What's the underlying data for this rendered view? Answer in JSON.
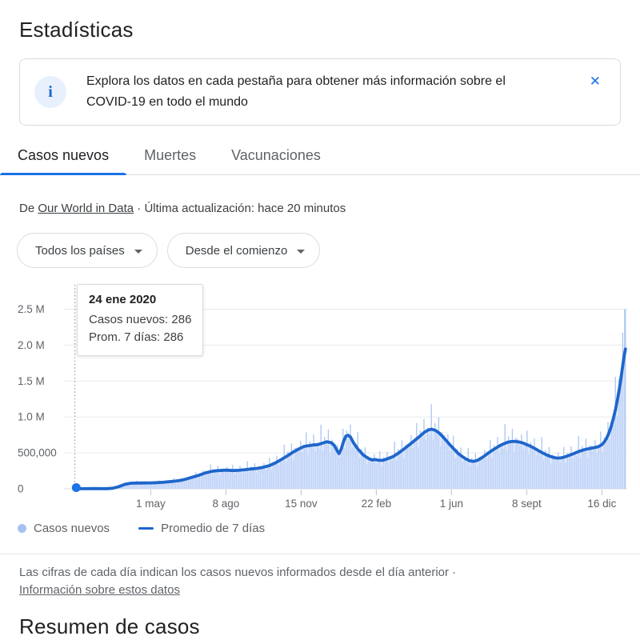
{
  "page": {
    "title": "Estadísticas",
    "bottom_heading": "Resumen de casos"
  },
  "banner": {
    "line1": "Explora los datos en cada pestaña para obtener más información sobre el",
    "line2": "COVID-19 en todo el mundo",
    "info_icon": "i",
    "close_icon": "✕"
  },
  "tabs": [
    {
      "label": "Casos nuevos",
      "active": true
    },
    {
      "label": "Muertes",
      "active": false
    },
    {
      "label": "Vacunaciones",
      "active": false
    }
  ],
  "source_line": {
    "prefix": "De ",
    "link": "Our World in Data",
    "suffix": " · Última actualización: hace 20 minutos"
  },
  "filters": [
    {
      "label": "Todos los países"
    },
    {
      "label": "Desde el comienzo"
    }
  ],
  "tooltip": {
    "title": "24 ene 2020",
    "line1": "Casos nuevos: 286",
    "line2": "Prom. 7 días: 286"
  },
  "legend": [
    {
      "label": "Casos nuevos",
      "swatch": "dot",
      "color": "#a6c2f2"
    },
    {
      "label": "Promedio de 7 días",
      "swatch": "line",
      "color": "#1e66cb"
    }
  ],
  "footnote": {
    "line1": "Las cifras de cada día indican los casos nuevos informados desde el día anterior  ·",
    "link": "Información sobre estos datos"
  },
  "colors": {
    "accent_blue": "#1a73e8",
    "avg_line": "#1e66cb",
    "daily_bars": "#a9c6f5",
    "area_fill": "#c8d9f8",
    "grid": "#e8eaed",
    "baseline": "#dadce0",
    "axis_text": "#5f6368",
    "cursor_dotted": "#8a8f94"
  },
  "chart_data": {
    "type": "area",
    "title": "Casos nuevos de COVID-19",
    "x_start_date": "24 ene 2020",
    "x_range_days": [
      0,
      723
    ],
    "ylim": [
      0,
      2500000
    ],
    "grid": true,
    "legend_position": "bottom",
    "y_ticks": [
      {
        "value": 0,
        "label": "0"
      },
      {
        "value": 500000,
        "label": "500,000"
      },
      {
        "value": 1000000,
        "label": "1.0 M"
      },
      {
        "value": 1500000,
        "label": "1.5 M"
      },
      {
        "value": 2000000,
        "label": "2.0 M"
      },
      {
        "value": 2500000,
        "label": "2.5 M"
      }
    ],
    "x_ticks": [
      {
        "label": "1 may",
        "day": 98
      },
      {
        "label": "8 ago",
        "day": 197
      },
      {
        "label": "15 nov",
        "day": 296
      },
      {
        "label": "22 feb",
        "day": 395
      },
      {
        "label": "1 jun",
        "day": 494
      },
      {
        "label": "8 sept",
        "day": 593
      },
      {
        "label": "16 dic",
        "day": 692
      }
    ],
    "highlighted_point": {
      "day": 0,
      "date": "24 ene 2020",
      "new_cases": 286,
      "avg7": 286
    },
    "series": [
      {
        "name": "Casos nuevos",
        "render": "bar",
        "color": "#a9c6f5"
      },
      {
        "name": "Promedio de 7 días",
        "render": "line",
        "color": "#1e66cb"
      }
    ],
    "avg7_points_day_thousands": [
      [
        0,
        0.3
      ],
      [
        8,
        1
      ],
      [
        16,
        2.5
      ],
      [
        24,
        3
      ],
      [
        32,
        2
      ],
      [
        40,
        2.5
      ],
      [
        48,
        8
      ],
      [
        56,
        30
      ],
      [
        64,
        62
      ],
      [
        72,
        78
      ],
      [
        80,
        80
      ],
      [
        90,
        81
      ],
      [
        98,
        82
      ],
      [
        106,
        86
      ],
      [
        114,
        90
      ],
      [
        122,
        98
      ],
      [
        130,
        107
      ],
      [
        138,
        118
      ],
      [
        146,
        140
      ],
      [
        154,
        165
      ],
      [
        162,
        190
      ],
      [
        170,
        222
      ],
      [
        178,
        242
      ],
      [
        186,
        253
      ],
      [
        197,
        260
      ],
      [
        206,
        254
      ],
      [
        214,
        257
      ],
      [
        222,
        266
      ],
      [
        230,
        276
      ],
      [
        238,
        284
      ],
      [
        246,
        300
      ],
      [
        254,
        322
      ],
      [
        262,
        360
      ],
      [
        270,
        408
      ],
      [
        278,
        460
      ],
      [
        286,
        515
      ],
      [
        294,
        560
      ],
      [
        300,
        590
      ],
      [
        306,
        600
      ],
      [
        312,
        610
      ],
      [
        318,
        615
      ],
      [
        324,
        635
      ],
      [
        330,
        655
      ],
      [
        336,
        640
      ],
      [
        340,
        600
      ],
      [
        344,
        520
      ],
      [
        346,
        490
      ],
      [
        349,
        560
      ],
      [
        352,
        660
      ],
      [
        355,
        735
      ],
      [
        358,
        745
      ],
      [
        361,
        720
      ],
      [
        365,
        640
      ],
      [
        371,
        550
      ],
      [
        378,
        470
      ],
      [
        385,
        420
      ],
      [
        390,
        400
      ],
      [
        392,
        408
      ],
      [
        399,
        396
      ],
      [
        404,
        398
      ],
      [
        410,
        420
      ],
      [
        417,
        448
      ],
      [
        424,
        495
      ],
      [
        431,
        550
      ],
      [
        438,
        608
      ],
      [
        445,
        668
      ],
      [
        452,
        728
      ],
      [
        458,
        785
      ],
      [
        464,
        822
      ],
      [
        468,
        830
      ],
      [
        473,
        812
      ],
      [
        478,
        775
      ],
      [
        483,
        720
      ],
      [
        488,
        660
      ],
      [
        493,
        600
      ],
      [
        498,
        545
      ],
      [
        503,
        490
      ],
      [
        508,
        450
      ],
      [
        513,
        415
      ],
      [
        518,
        390
      ],
      [
        523,
        382
      ],
      [
        528,
        395
      ],
      [
        533,
        425
      ],
      [
        538,
        462
      ],
      [
        543,
        502
      ],
      [
        548,
        538
      ],
      [
        553,
        570
      ],
      [
        558,
        602
      ],
      [
        563,
        628
      ],
      [
        568,
        648
      ],
      [
        573,
        658
      ],
      [
        578,
        660
      ],
      [
        583,
        652
      ],
      [
        588,
        638
      ],
      [
        593,
        615
      ],
      [
        598,
        592
      ],
      [
        603,
        565
      ],
      [
        608,
        535
      ],
      [
        613,
        505
      ],
      [
        618,
        478
      ],
      [
        623,
        455
      ],
      [
        628,
        438
      ],
      [
        633,
        428
      ],
      [
        638,
        430
      ],
      [
        643,
        443
      ],
      [
        648,
        462
      ],
      [
        653,
        482
      ],
      [
        658,
        505
      ],
      [
        663,
        525
      ],
      [
        668,
        542
      ],
      [
        673,
        555
      ],
      [
        678,
        565
      ],
      [
        683,
        575
      ],
      [
        688,
        590
      ],
      [
        692,
        615
      ],
      [
        695,
        650
      ],
      [
        698,
        700
      ],
      [
        701,
        770
      ],
      [
        704,
        860
      ],
      [
        707,
        975
      ],
      [
        710,
        1110
      ],
      [
        713,
        1270
      ],
      [
        716,
        1460
      ],
      [
        719,
        1680
      ],
      [
        721,
        1830
      ],
      [
        723,
        1945
      ]
    ],
    "bar_jitter": [
      1.06,
      0.93,
      1.18,
      0.87,
      1.02,
      1.32,
      0.8,
      1.1,
      0.94,
      1.24,
      0.85,
      1.04,
      0.9,
      1.42,
      0.83,
      1.12,
      0.97,
      1.27,
      0.78,
      1.08
    ],
    "last_bar_thousands": 2500,
    "max_bar_thousands": 2505
  }
}
